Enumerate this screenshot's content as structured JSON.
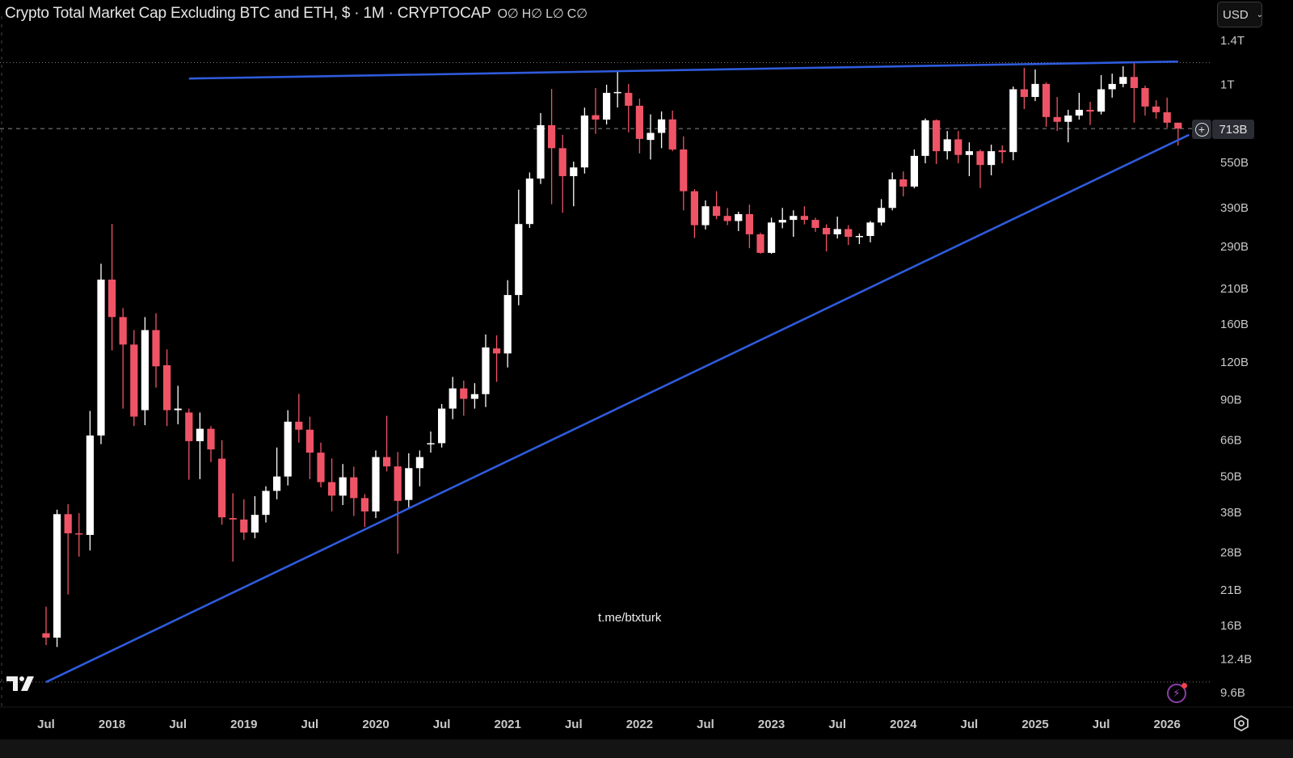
{
  "header": {
    "title": "Crypto Total Market Cap Excluding BTC and ETH, $ · 1M · CRYPTOCAP",
    "ohlc": "O∅ H∅ L∅ C∅"
  },
  "currency_selector": {
    "value": "USD",
    "icon": "chevron-down-icon"
  },
  "price_tag": {
    "value": "713B",
    "icon": "plus-circle-icon"
  },
  "watermark": "t.me/btxturk",
  "icons": {
    "logo": "tradingview-logo",
    "alert": "lightning-icon",
    "settings": "gear-icon"
  },
  "colors": {
    "up": "#ffffff",
    "down": "#ef5466",
    "trendline": "#2f5bdc",
    "background": "#000000"
  },
  "chart_data": {
    "type": "candlestick",
    "interval": "1M",
    "scale": "log",
    "y_axis_position": "right",
    "grid": false,
    "candle_fields": [
      "date",
      "open",
      "high",
      "low",
      "close"
    ],
    "candles": [
      [
        "2017-07",
        15.1,
        18.5,
        13.8,
        14.6
      ],
      [
        "2017-08",
        14.6,
        38.8,
        13.6,
        37.5
      ],
      [
        "2017-09",
        37.5,
        40.5,
        20.3,
        32.4
      ],
      [
        "2017-10",
        32.4,
        37.8,
        27.1,
        32.2
      ],
      [
        "2017-11",
        32.0,
        82.5,
        28.4,
        68.4
      ],
      [
        "2017-12",
        68.4,
        254,
        64,
        225
      ],
      [
        "2018-01",
        225,
        344,
        131,
        169
      ],
      [
        "2018-02",
        169,
        181,
        84,
        137
      ],
      [
        "2018-03",
        137,
        153,
        73.5,
        79
      ],
      [
        "2018-04",
        83,
        169,
        74,
        153
      ],
      [
        "2018-05",
        153,
        174,
        98.6,
        116
      ],
      [
        "2018-06",
        117,
        132,
        73.5,
        83
      ],
      [
        "2018-07",
        83,
        100,
        74.5,
        84
      ],
      [
        "2018-08",
        81.5,
        84,
        48.8,
        65.5
      ],
      [
        "2018-09",
        65.5,
        81.5,
        49,
        72
      ],
      [
        "2018-10",
        72,
        73.5,
        55.8,
        61.5
      ],
      [
        "2018-11",
        57.3,
        66,
        34.6,
        36.6
      ],
      [
        "2018-12",
        36.4,
        44,
        26.1,
        36.0
      ],
      [
        "2019-01",
        36.0,
        42,
        30.8,
        32.6
      ],
      [
        "2019-02",
        32.6,
        43,
        31.2,
        37.3
      ],
      [
        "2019-03",
        37.3,
        46.4,
        35.2,
        44.8
      ],
      [
        "2019-04",
        44.8,
        62.4,
        42,
        50
      ],
      [
        "2019-05",
        50,
        83,
        46.7,
        76
      ],
      [
        "2019-06",
        76,
        94,
        64.8,
        71.5
      ],
      [
        "2019-07",
        71.5,
        79,
        49,
        60
      ],
      [
        "2019-08",
        60,
        64.8,
        46,
        47.9
      ],
      [
        "2019-09",
        47.9,
        57.4,
        38.3,
        43.2
      ],
      [
        "2019-10",
        43.2,
        55,
        40.2,
        49.7
      ],
      [
        "2019-11",
        49.7,
        53.9,
        37,
        42.4
      ],
      [
        "2019-12",
        42.4,
        43.7,
        34,
        38.3
      ],
      [
        "2020-01",
        38.3,
        61,
        36.4,
        58
      ],
      [
        "2020-02",
        58,
        79.5,
        52,
        54
      ],
      [
        "2020-03",
        54,
        60.3,
        27.7,
        41.5
      ],
      [
        "2020-04",
        41.8,
        59.7,
        39.5,
        53.3
      ],
      [
        "2020-05",
        53.3,
        61,
        46.4,
        58
      ],
      [
        "2020-06",
        64,
        70.5,
        60,
        64.5
      ],
      [
        "2020-07",
        64.5,
        87,
        62.4,
        84
      ],
      [
        "2020-08",
        84,
        107,
        77.5,
        98
      ],
      [
        "2020-09",
        98,
        104,
        79.5,
        90.5
      ],
      [
        "2020-10",
        90.5,
        102,
        84,
        93.8
      ],
      [
        "2020-11",
        93.8,
        148,
        85,
        134
      ],
      [
        "2020-12",
        133,
        147,
        103,
        128
      ],
      [
        "2021-01",
        128,
        224,
        115,
        200
      ],
      [
        "2021-02",
        200,
        447,
        185,
        344
      ],
      [
        "2021-03",
        344,
        510,
        334,
        487
      ],
      [
        "2021-04",
        487,
        803,
        467,
        732
      ],
      [
        "2021-05",
        732,
        966,
        400,
        614
      ],
      [
        "2021-06",
        614,
        680,
        375,
        496
      ],
      [
        "2021-07",
        496,
        554,
        394,
        530
      ],
      [
        "2021-08",
        530,
        837,
        506,
        788
      ],
      [
        "2021-09",
        790,
        972,
        685,
        764
      ],
      [
        "2021-10",
        764,
        997,
        736,
        937
      ],
      [
        "2021-11",
        937,
        1112,
        838,
        943
      ],
      [
        "2021-12",
        937,
        1003,
        693,
        849
      ],
      [
        "2022-01",
        849,
        897,
        590,
        659
      ],
      [
        "2022-02",
        654,
        795,
        563,
        690
      ],
      [
        "2022-03",
        690,
        813,
        614,
        765
      ],
      [
        "2022-04",
        765,
        818,
        600,
        608
      ],
      [
        "2022-05",
        608,
        672,
        382,
        442
      ],
      [
        "2022-06",
        442,
        449,
        309,
        341
      ],
      [
        "2022-07",
        341,
        412,
        330,
        394
      ],
      [
        "2022-08",
        394,
        442,
        357,
        366
      ],
      [
        "2022-09",
        366,
        389,
        341,
        352
      ],
      [
        "2022-10",
        352,
        378,
        326,
        371
      ],
      [
        "2022-11",
        371,
        399,
        286,
        318
      ],
      [
        "2022-12",
        318,
        322,
        274,
        276
      ],
      [
        "2023-01",
        276,
        361,
        274,
        348
      ],
      [
        "2023-02",
        348,
        389,
        333,
        355
      ],
      [
        "2023-03",
        355,
        382,
        312,
        366
      ],
      [
        "2023-04",
        366,
        394,
        343,
        355
      ],
      [
        "2023-05",
        355,
        361,
        324,
        334
      ],
      [
        "2023-06",
        334,
        343,
        279,
        318
      ],
      [
        "2023-07",
        318,
        364,
        308,
        331
      ],
      [
        "2023-08",
        331,
        341,
        293,
        312
      ],
      [
        "2023-09",
        312,
        320,
        295,
        314
      ],
      [
        "2023-10",
        314,
        352,
        299,
        348
      ],
      [
        "2023-11",
        348,
        416,
        340,
        389
      ],
      [
        "2023-12",
        389,
        510,
        382,
        484
      ],
      [
        "2024-01",
        484,
        514,
        425,
        458
      ],
      [
        "2024-02",
        458,
        608,
        452,
        579
      ],
      [
        "2024-03",
        579,
        770,
        547,
        760
      ],
      [
        "2024-04",
        760,
        765,
        544,
        600
      ],
      [
        "2024-05",
        600,
        700,
        563,
        657
      ],
      [
        "2024-06",
        657,
        700,
        547,
        583
      ],
      [
        "2024-07",
        583,
        642,
        496,
        600
      ],
      [
        "2024-08",
        600,
        608,
        453,
        540
      ],
      [
        "2024-09",
        540,
        631,
        499,
        600
      ],
      [
        "2024-10",
        604,
        627,
        547,
        596
      ],
      [
        "2024-11",
        596,
        983,
        560,
        963
      ],
      [
        "2024-12",
        963,
        1134,
        828,
        908
      ],
      [
        "2025-01",
        908,
        1120,
        880,
        1003
      ],
      [
        "2025-02",
        1003,
        1015,
        723,
        779
      ],
      [
        "2025-03",
        779,
        908,
        700,
        751
      ],
      [
        "2025-04",
        751,
        823,
        642,
        788
      ],
      [
        "2025-05",
        788,
        937,
        764,
        823
      ],
      [
        "2025-06",
        823,
        875,
        733,
        812
      ],
      [
        "2025-07",
        812,
        1073,
        795,
        963
      ],
      [
        "2025-08",
        963,
        1085,
        903,
        1003
      ],
      [
        "2025-09",
        1003,
        1148,
        978,
        1058
      ],
      [
        "2025-10",
        1058,
        1183,
        746,
        972
      ],
      [
        "2025-11",
        972,
        990,
        788,
        844
      ],
      [
        "2025-12",
        844,
        885,
        769,
        808
      ],
      [
        "2026-01",
        808,
        903,
        718,
        746
      ],
      [
        "2026-02",
        746,
        746,
        627,
        713
      ]
    ],
    "y_ticks": [
      {
        "label": "1.4T",
        "value": 1400
      },
      {
        "label": "1T",
        "value": 1000
      },
      {
        "label": "550B",
        "value": 550
      },
      {
        "label": "390B",
        "value": 390
      },
      {
        "label": "290B",
        "value": 290
      },
      {
        "label": "210B",
        "value": 210
      },
      {
        "label": "160B",
        "value": 160
      },
      {
        "label": "120B",
        "value": 120
      },
      {
        "label": "90B",
        "value": 90
      },
      {
        "label": "66B",
        "value": 66
      },
      {
        "label": "50B",
        "value": 50
      },
      {
        "label": "38B",
        "value": 38
      },
      {
        "label": "28B",
        "value": 28
      },
      {
        "label": "21B",
        "value": 21
      },
      {
        "label": "16B",
        "value": 16
      },
      {
        "label": "12.4B",
        "value": 12.4
      },
      {
        "label": "9.6B",
        "value": 9.6
      }
    ],
    "x_ticks": [
      {
        "label": "Jul",
        "date": "2017-07"
      },
      {
        "label": "2018",
        "date": "2018-01"
      },
      {
        "label": "Jul",
        "date": "2018-07"
      },
      {
        "label": "2019",
        "date": "2019-01"
      },
      {
        "label": "Jul",
        "date": "2019-07"
      },
      {
        "label": "2020",
        "date": "2020-01"
      },
      {
        "label": "Jul",
        "date": "2020-07"
      },
      {
        "label": "2021",
        "date": "2021-01"
      },
      {
        "label": "Jul",
        "date": "2021-07"
      },
      {
        "label": "2022",
        "date": "2022-01"
      },
      {
        "label": "Jul",
        "date": "2022-07"
      },
      {
        "label": "2023",
        "date": "2023-01"
      },
      {
        "label": "Jul",
        "date": "2023-07"
      },
      {
        "label": "2024",
        "date": "2024-01"
      },
      {
        "label": "Jul",
        "date": "2024-07"
      },
      {
        "label": "2025",
        "date": "2025-01"
      },
      {
        "label": "Jul",
        "date": "2025-07"
      },
      {
        "label": "2026",
        "date": "2026-01"
      }
    ],
    "current_price": 713,
    "horizontal_levels": [
      1180,
      10.4
    ],
    "trendlines": [
      {
        "name": "resistance",
        "start": [
          "2018-08",
          1045
        ],
        "end": [
          "2026-02",
          1190
        ]
      },
      {
        "name": "support",
        "start": [
          "2017-07",
          10.4
        ],
        "end": [
          "2026-03",
          680
        ]
      }
    ]
  }
}
